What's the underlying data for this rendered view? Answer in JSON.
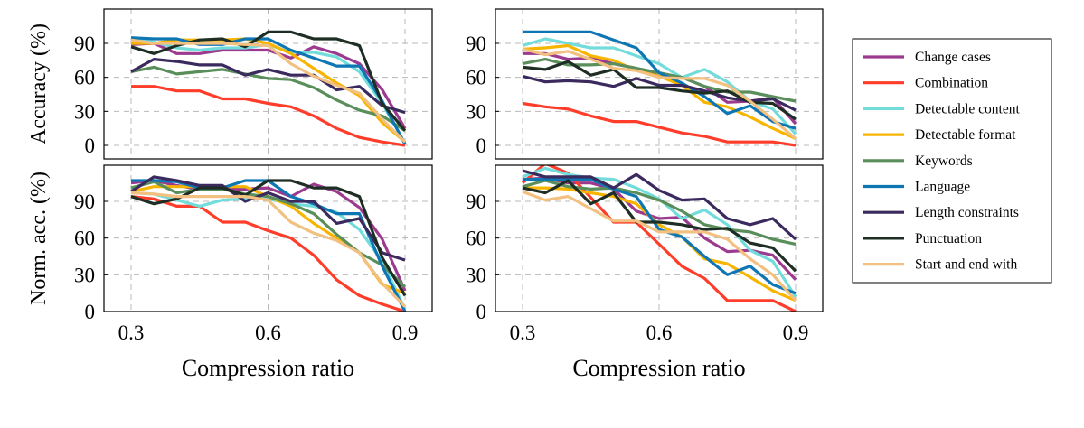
{
  "chart_data": [
    {
      "type": "line",
      "panel": "top-left",
      "ylabel": "Accuracy (%)",
      "xlabel": "Compression ratio",
      "x": [
        0.3,
        0.35,
        0.4,
        0.45,
        0.5,
        0.55,
        0.6,
        0.65,
        0.7,
        0.75,
        0.8,
        0.85,
        0.9
      ],
      "xticks": [
        "0.3",
        "0.6",
        "0.9"
      ],
      "yticks": [
        "0",
        "30",
        "60",
        "90"
      ],
      "ylim": [
        -8,
        120
      ],
      "xlim": [
        0.24,
        0.96
      ],
      "grid": true,
      "series": [
        {
          "name": "Change cases",
          "values": [
            89,
            90,
            81,
            81,
            84,
            84,
            84,
            77,
            87,
            81,
            72,
            49,
            15
          ]
        },
        {
          "name": "Combination",
          "values": [
            52,
            52,
            48,
            48,
            41,
            41,
            37,
            34,
            26,
            15,
            7,
            3,
            0
          ]
        },
        {
          "name": "Detectable content",
          "values": [
            95,
            91,
            86,
            84,
            86,
            86,
            89,
            82,
            82,
            78,
            65,
            37,
            2
          ]
        },
        {
          "name": "Detectable format",
          "values": [
            90,
            90,
            93,
            93,
            93,
            94,
            90,
            81,
            68,
            55,
            44,
            20,
            3
          ]
        },
        {
          "name": "Keywords",
          "values": [
            65,
            69,
            63,
            65,
            67,
            63,
            59,
            58,
            51,
            40,
            31,
            26,
            13
          ]
        },
        {
          "name": "Language",
          "values": [
            95,
            94,
            94,
            89,
            89,
            94,
            94,
            84,
            77,
            70,
            70,
            39,
            1
          ]
        },
        {
          "name": "Length constraints",
          "values": [
            65,
            76,
            74,
            71,
            71,
            62,
            67,
            62,
            62,
            49,
            52,
            35,
            29
          ]
        },
        {
          "name": "Punctuation",
          "values": [
            87,
            81,
            88,
            93,
            94,
            87,
            100,
            100,
            94,
            94,
            88,
            37,
            13
          ]
        },
        {
          "name": "Start and end with",
          "values": [
            93,
            90,
            90,
            90,
            90,
            89,
            88,
            72,
            61,
            53,
            46,
            23,
            3
          ]
        }
      ]
    },
    {
      "type": "line",
      "panel": "top-right",
      "xlabel": "Compression ratio",
      "x": [
        0.3,
        0.35,
        0.4,
        0.45,
        0.5,
        0.55,
        0.6,
        0.65,
        0.7,
        0.75,
        0.8,
        0.85,
        0.9
      ],
      "xticks": [
        "0.3",
        "0.6",
        "0.9"
      ],
      "yticks": [
        "0",
        "30",
        "60",
        "90"
      ],
      "ylim": [
        -8,
        120
      ],
      "xlim": [
        0.24,
        0.96
      ],
      "grid": true,
      "series": [
        {
          "name": "Change cases",
          "values": [
            81,
            81,
            76,
            77,
            72,
            68,
            61,
            60,
            52,
            38,
            39,
            42,
            19
          ]
        },
        {
          "name": "Combination",
          "values": [
            37,
            34,
            32,
            26,
            21,
            21,
            16,
            11,
            8,
            3,
            3,
            3,
            0
          ]
        },
        {
          "name": "Detectable content",
          "values": [
            88,
            94,
            90,
            86,
            86,
            79,
            72,
            60,
            67,
            56,
            39,
            32,
            10
          ]
        },
        {
          "name": "Detectable format",
          "values": [
            85,
            86,
            88,
            79,
            75,
            66,
            61,
            53,
            38,
            34,
            25,
            15,
            6
          ]
        },
        {
          "name": "Keywords",
          "values": [
            72,
            76,
            71,
            71,
            72,
            68,
            64,
            60,
            52,
            47,
            47,
            43,
            39
          ]
        },
        {
          "name": "Language",
          "values": [
            100,
            100,
            100,
            100,
            93,
            86,
            64,
            55,
            43,
            28,
            35,
            21,
            15
          ]
        },
        {
          "name": "Length constraints",
          "values": [
            61,
            56,
            57,
            56,
            52,
            59,
            53,
            53,
            48,
            42,
            39,
            41,
            31
          ]
        },
        {
          "name": "Punctuation",
          "values": [
            69,
            67,
            74,
            62,
            67,
            51,
            51,
            48,
            46,
            48,
            38,
            37,
            23
          ]
        },
        {
          "name": "Start and end with",
          "values": [
            85,
            80,
            83,
            76,
            68,
            66,
            60,
            59,
            59,
            53,
            39,
            23,
            6
          ]
        }
      ]
    },
    {
      "type": "line",
      "panel": "bottom-left",
      "ylabel": "Norm. acc. (%)",
      "xlabel": "Compression ratio",
      "x": [
        0.3,
        0.35,
        0.4,
        0.45,
        0.5,
        0.55,
        0.6,
        0.65,
        0.7,
        0.75,
        0.8,
        0.85,
        0.9
      ],
      "xticks": [
        "0.3",
        "0.6",
        "0.9"
      ],
      "yticks": [
        "0",
        "30",
        "60",
        "90"
      ],
      "ylim": [
        0,
        119
      ],
      "xlim": [
        0.24,
        0.96
      ],
      "grid": true,
      "series": [
        {
          "name": "Change cases",
          "values": [
            105,
            107,
            103,
            100,
            100,
            100,
            101,
            94,
            104,
            98,
            85,
            59,
            17
          ]
        },
        {
          "name": "Combination",
          "values": [
            94,
            92,
            86,
            86,
            73,
            73,
            66,
            60,
            46,
            26,
            13,
            6,
            0
          ]
        },
        {
          "name": "Detectable content",
          "values": [
            97,
            96,
            91,
            86,
            91,
            92,
            92,
            88,
            86,
            81,
            67,
            41,
            2
          ]
        },
        {
          "name": "Detectable format",
          "values": [
            98,
            102,
            102,
            102,
            102,
            102,
            94,
            86,
            72,
            60,
            48,
            22,
            15
          ]
        },
        {
          "name": "Keywords",
          "values": [
            101,
            106,
            97,
            100,
            100,
            96,
            94,
            88,
            80,
            63,
            48,
            38,
            20
          ]
        },
        {
          "name": "Language",
          "values": [
            107,
            107,
            106,
            101,
            101,
            107,
            107,
            94,
            88,
            80,
            80,
            37,
            0
          ]
        },
        {
          "name": "Length constraints",
          "values": [
            98,
            110,
            107,
            103,
            103,
            90,
            97,
            90,
            90,
            72,
            76,
            48,
            42
          ]
        },
        {
          "name": "Punctuation",
          "values": [
            94,
            88,
            92,
            101,
            101,
            95,
            107,
            107,
            101,
            101,
            94,
            44,
            13
          ]
        },
        {
          "name": "Start and end with",
          "values": [
            97,
            96,
            94,
            94,
            94,
            94,
            91,
            73,
            64,
            58,
            48,
            23,
            4
          ]
        }
      ]
    },
    {
      "type": "line",
      "panel": "bottom-right",
      "xlabel": "Compression ratio",
      "x": [
        0.3,
        0.35,
        0.4,
        0.45,
        0.5,
        0.55,
        0.6,
        0.65,
        0.7,
        0.75,
        0.8,
        0.85,
        0.9
      ],
      "xticks": [
        "0.3",
        "0.6",
        "0.9"
      ],
      "yticks": [
        "0",
        "30",
        "60",
        "90"
      ],
      "ylim": [
        0,
        119
      ],
      "xlim": [
        0.24,
        0.96
      ],
      "grid": true,
      "series": [
        {
          "name": "Change cases",
          "values": [
            108,
            109,
            105,
            105,
            100,
            82,
            76,
            77,
            60,
            49,
            50,
            46,
            26
          ]
        },
        {
          "name": "Combination",
          "values": [
            105,
            121,
            113,
            93,
            73,
            73,
            55,
            37,
            27,
            9,
            9,
            9,
            0
          ]
        },
        {
          "name": "Detectable content",
          "values": [
            110,
            117,
            112,
            109,
            108,
            101,
            92,
            76,
            83,
            71,
            50,
            41,
            12
          ]
        },
        {
          "name": "Detectable format",
          "values": [
            101,
            101,
            100,
            97,
            94,
            88,
            71,
            61,
            43,
            39,
            28,
            17,
            9
          ]
        },
        {
          "name": "Keywords",
          "values": [
            102,
            107,
            102,
            100,
            101,
            97,
            91,
            82,
            71,
            67,
            65,
            59,
            55
          ]
        },
        {
          "name": "Language",
          "values": [
            108,
            108,
            108,
            108,
            100,
            94,
            67,
            61,
            45,
            30,
            37,
            22,
            15
          ]
        },
        {
          "name": "Length constraints",
          "values": [
            115,
            110,
            110,
            110,
            101,
            112,
            99,
            91,
            92,
            76,
            71,
            76,
            59
          ]
        },
        {
          "name": "Punctuation",
          "values": [
            101,
            97,
            107,
            88,
            97,
            73,
            73,
            71,
            67,
            68,
            56,
            52,
            33
          ]
        },
        {
          "name": "Start and end with",
          "values": [
            98,
            91,
            94,
            84,
            74,
            74,
            65,
            65,
            65,
            59,
            43,
            30,
            9
          ]
        }
      ]
    }
  ],
  "legend": {
    "placement": "right",
    "entries": [
      {
        "name": "Change cases",
        "color": "#9B3A8E"
      },
      {
        "name": "Combination",
        "color": "#FF3D2A"
      },
      {
        "name": "Detectable content",
        "color": "#72DCDB"
      },
      {
        "name": "Detectable format",
        "color": "#F7B500"
      },
      {
        "name": "Keywords",
        "color": "#5A8E5A"
      },
      {
        "name": "Language",
        "color": "#0E76B3"
      },
      {
        "name": "Length constraints",
        "color": "#3A2A5E"
      },
      {
        "name": "Punctuation",
        "color": "#1E2E24"
      },
      {
        "name": "Start and end with",
        "color": "#F2C080"
      }
    ]
  }
}
